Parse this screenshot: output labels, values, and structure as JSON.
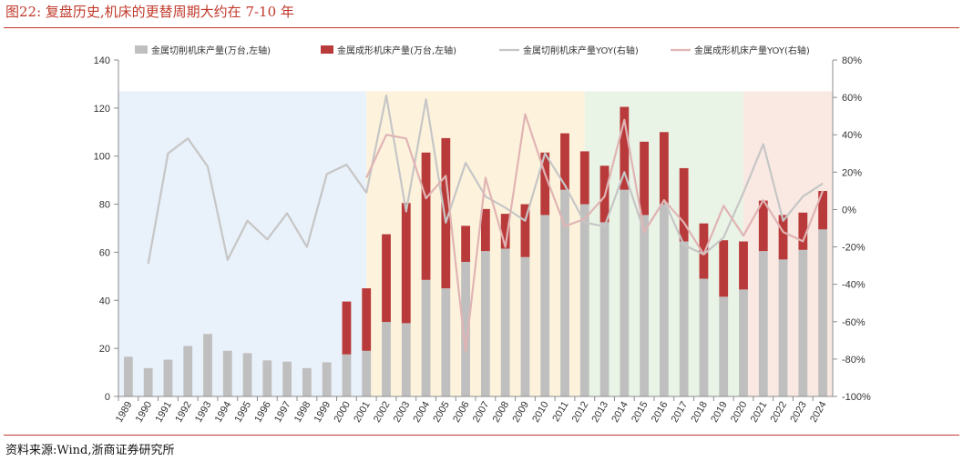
{
  "figure": {
    "title": "图22:   复盘历史,机床的更替周期大约在 7-10 年",
    "source": "资料来源:Wind,浙商证券研究所"
  },
  "colors": {
    "cutting_bar": "#bfbfbf",
    "forming_bar": "#b93a3a",
    "cutting_line": "#c6c6c6",
    "forming_line": "#e0b4b4",
    "rule": "#c0392b",
    "shade_blue": "#e9f1fa",
    "shade_yellow": "#fdf3dd",
    "shade_green": "#e9f4e6",
    "shade_pink": "#f9e9e2"
  },
  "chart_data": {
    "type": "bar",
    "stacked": true,
    "categories": [
      "1989",
      "1990",
      "1991",
      "1992",
      "1993",
      "1994",
      "1995",
      "1996",
      "1997",
      "1998",
      "1999",
      "2000",
      "2001",
      "2002",
      "2003",
      "2004",
      "2005",
      "2006",
      "2007",
      "2008",
      "2009",
      "2010",
      "2011",
      "2012",
      "2013",
      "2014",
      "2015",
      "2016",
      "2017",
      "2018",
      "2019",
      "2020",
      "2021",
      "2022",
      "2023",
      "2024"
    ],
    "left_axis": {
      "min": 0,
      "max": 140,
      "ticks": [
        0,
        20,
        40,
        60,
        80,
        100,
        120,
        140
      ]
    },
    "right_axis": {
      "min": -100,
      "max": 80,
      "ticks": [
        -100,
        -80,
        -60,
        -40,
        -20,
        0,
        20,
        40,
        60,
        80
      ],
      "tick_labels": [
        "-100%",
        "-80%",
        "-60%",
        "-40%",
        "-20%",
        "0%",
        "20%",
        "40%",
        "60%",
        "80%"
      ]
    },
    "legend_position": "top",
    "series": [
      {
        "name": "金属切削机床产量(万台,左轴)",
        "kind": "bar",
        "axis": "left",
        "values": [
          16.5,
          11.8,
          15.3,
          21.0,
          26.0,
          19.0,
          18.0,
          15.0,
          14.5,
          11.8,
          14.2,
          17.5,
          19.0,
          31.0,
          30.5,
          48.5,
          45.0,
          56.0,
          60.5,
          61.5,
          58.0,
          75.5,
          86.0,
          80.0,
          72.5,
          86.0,
          75.5,
          80.0,
          64.5,
          49.0,
          41.5,
          44.5,
          60.5,
          57.0,
          61.0,
          69.5
        ]
      },
      {
        "name": "金属成形机床产量(万台,左轴)",
        "kind": "bar",
        "axis": "left",
        "stack_on": 0,
        "values": [
          null,
          null,
          null,
          null,
          null,
          null,
          null,
          null,
          null,
          null,
          null,
          22.0,
          26.0,
          36.5,
          50.0,
          53.0,
          62.5,
          15.0,
          17.5,
          14.5,
          22.0,
          26.0,
          23.5,
          22.0,
          23.5,
          34.5,
          30.5,
          30.0,
          30.5,
          23.0,
          23.5,
          20.0,
          21.0,
          18.5,
          15.5,
          16.0
        ]
      },
      {
        "name": "金属切削机床产量YOY(右轴)",
        "kind": "line",
        "axis": "right",
        "values": [
          null,
          -29,
          30,
          38,
          23,
          -27,
          -6,
          -16,
          -2,
          -20,
          19,
          24,
          9,
          61,
          -1,
          59,
          -7,
          25,
          7,
          1,
          -6,
          30,
          13,
          -7,
          -9,
          20,
          -12,
          5,
          -19,
          -24,
          -15,
          9,
          35,
          -6,
          7,
          14
        ]
      },
      {
        "name": "金属成形机床产量YOY(右轴)",
        "kind": "line",
        "axis": "right",
        "values": [
          null,
          null,
          null,
          null,
          null,
          null,
          null,
          null,
          null,
          null,
          null,
          null,
          17,
          40,
          38,
          6,
          18,
          -76,
          17,
          -20,
          51,
          19,
          -9,
          -5,
          7,
          48,
          -12,
          5,
          -7,
          -24,
          2,
          -14,
          5,
          -12,
          -17,
          10
        ]
      }
    ],
    "shaded_periods": [
      {
        "from": "1989",
        "to": "2001",
        "color_key": "shade_blue"
      },
      {
        "from": "2001",
        "to": "2012",
        "color_key": "shade_yellow"
      },
      {
        "from": "2012",
        "to": "2020",
        "color_key": "shade_green"
      },
      {
        "from": "2020",
        "to": "2024",
        "color_key": "shade_pink"
      }
    ]
  }
}
